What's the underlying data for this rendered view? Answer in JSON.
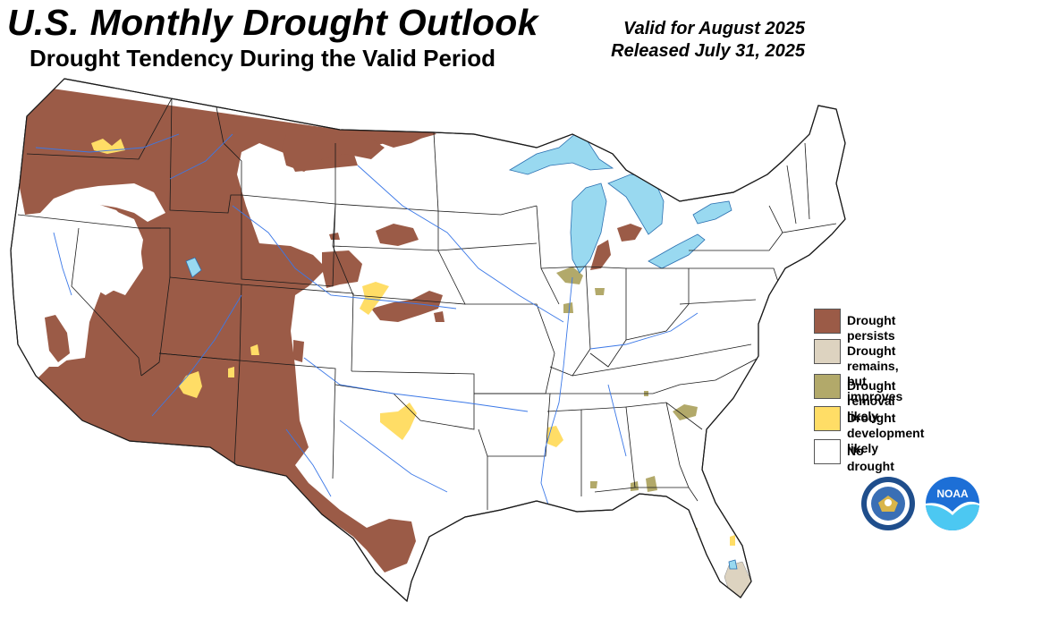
{
  "header": {
    "title": "U.S. Monthly Drought Outlook",
    "subtitle": "Drought Tendency During the Valid Period",
    "valid_for": "Valid for August 2025",
    "released": "Released July 31, 2025"
  },
  "legend": {
    "items": [
      {
        "key": "persists",
        "label_lines": [
          "Drought persists"
        ],
        "color": "#9b5b47"
      },
      {
        "key": "improves",
        "label_lines": [
          "Drought remains,",
          "but improves"
        ],
        "color": "#ddd3c0"
      },
      {
        "key": "removal",
        "label_lines": [
          "Drought removal likely"
        ],
        "color": "#b2a96a"
      },
      {
        "key": "development",
        "label_lines": [
          "Drought development likely"
        ],
        "color": "#ffdd66"
      },
      {
        "key": "none",
        "label_lines": [
          "No drought"
        ],
        "color": "#ffffff"
      }
    ]
  },
  "map": {
    "water_color": "#99d9f0",
    "border_color": "#1a1a1a",
    "river_color": "#3b78e7"
  },
  "logos": [
    {
      "name": "commerce-seal",
      "text": "DEPARTMENT OF COMMERCE"
    },
    {
      "name": "noaa-logo",
      "text": "NOAA"
    }
  ]
}
